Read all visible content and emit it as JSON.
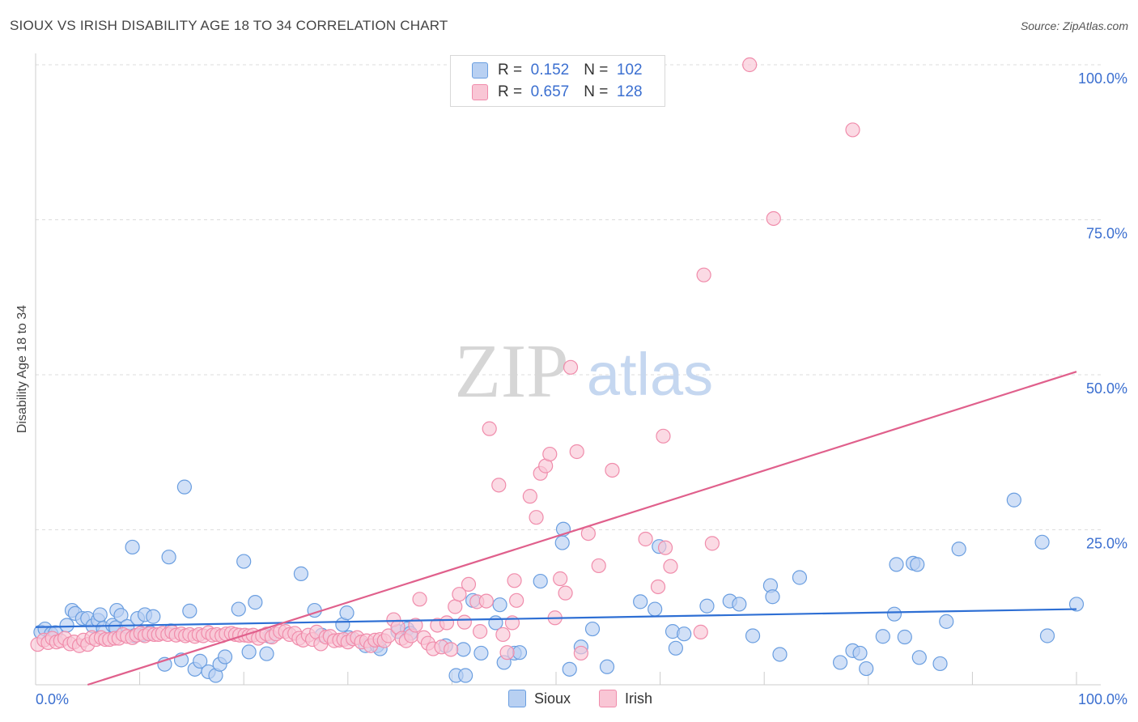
{
  "header": {
    "title": "SIOUX VS IRISH DISABILITY AGE 18 TO 34 CORRELATION CHART",
    "source": "Source: ZipAtlas.com"
  },
  "watermark": {
    "zip": "ZIP",
    "atlas": "atlas"
  },
  "legend": {
    "r_label": "R =",
    "n_label": "N =",
    "items": [
      {
        "name": "Sioux",
        "r": "0.152",
        "n": "102",
        "color": "#6a9ee0"
      },
      {
        "name": "Irish",
        "r": "0.657",
        "n": "128",
        "color": "#f08cab"
      }
    ]
  },
  "colors": {
    "sioux_fill": "#b8d0f2",
    "sioux_stroke": "#6a9ee0",
    "sioux_line": "#2e6fd4",
    "irish_fill": "#f9c6d5",
    "irish_stroke": "#f08cab",
    "irish_line": "#e0608c",
    "axis_text": "#3b6fd0",
    "grid": "#dddddd"
  },
  "chart_data": {
    "type": "scatter",
    "title": "SIOUX VS IRISH DISABILITY AGE 18 TO 34 CORRELATION CHART",
    "xlabel": "",
    "ylabel": "Disability Age 18 to 34",
    "x_tick_labels": [
      "0.0%",
      "100.0%"
    ],
    "y_tick_labels": [
      "25.0%",
      "50.0%",
      "75.0%",
      "100.0%"
    ],
    "y_ticks": [
      25,
      50,
      75,
      100
    ],
    "xlim": [
      0,
      100
    ],
    "ylim": [
      0,
      100
    ],
    "grid": true,
    "legend_position": "top-center",
    "series": [
      {
        "name": "Sioux",
        "trend": {
          "x": [
            0,
            100
          ],
          "y": [
            9.3,
            12.2
          ]
        },
        "points": [
          [
            0.5,
            8.5
          ],
          [
            0.9,
            9
          ],
          [
            1.5,
            8.2
          ],
          [
            1.9,
            8.4
          ],
          [
            3.0,
            9.6
          ],
          [
            3.5,
            12
          ],
          [
            3.8,
            11.5
          ],
          [
            4.5,
            10.7
          ],
          [
            5,
            10.7
          ],
          [
            5.5,
            9.5
          ],
          [
            6,
            10.4
          ],
          [
            6.2,
            11.3
          ],
          [
            6.5,
            9.1
          ],
          [
            7.4,
            9.6
          ],
          [
            7.7,
            9.2
          ],
          [
            7.8,
            12
          ],
          [
            8.2,
            11.2
          ],
          [
            8.8,
            9.4
          ],
          [
            9.3,
            22.2
          ],
          [
            9.5,
            7.9
          ],
          [
            9.8,
            10.7
          ],
          [
            10.3,
            8.1
          ],
          [
            10.5,
            11.3
          ],
          [
            11,
            8.4
          ],
          [
            11.3,
            11
          ],
          [
            12.4,
            3.3
          ],
          [
            12.8,
            20.6
          ],
          [
            13,
            8.7
          ],
          [
            14,
            4
          ],
          [
            14.3,
            31.9
          ],
          [
            14.8,
            11.9
          ],
          [
            15.3,
            2.5
          ],
          [
            15.8,
            3.8
          ],
          [
            16.6,
            2.1
          ],
          [
            17.3,
            1.5
          ],
          [
            17.7,
            3.3
          ],
          [
            18.2,
            4.5
          ],
          [
            19.5,
            12.2
          ],
          [
            20,
            19.9
          ],
          [
            20.5,
            5.3
          ],
          [
            21.1,
            13.3
          ],
          [
            22.2,
            5
          ],
          [
            22.5,
            7.8
          ],
          [
            25.5,
            17.9
          ],
          [
            26.8,
            12
          ],
          [
            27.5,
            8
          ],
          [
            29.5,
            9.7
          ],
          [
            29.9,
            11.6
          ],
          [
            30.1,
            7.6
          ],
          [
            31.7,
            6.3
          ],
          [
            32.8,
            6.3
          ],
          [
            33.1,
            5.8
          ],
          [
            34.8,
            8.6
          ],
          [
            35.7,
            9
          ],
          [
            36,
            8.3
          ],
          [
            39.4,
            6.3
          ],
          [
            40.4,
            1.5
          ],
          [
            41.1,
            5.7
          ],
          [
            41.3,
            1.5
          ],
          [
            42,
            13.6
          ],
          [
            42.8,
            5.1
          ],
          [
            44.2,
            10
          ],
          [
            44.6,
            12.9
          ],
          [
            45,
            3.6
          ],
          [
            46,
            5.1
          ],
          [
            46.5,
            5.2
          ],
          [
            48.5,
            16.7
          ],
          [
            50.6,
            22.9
          ],
          [
            50.7,
            25.1
          ],
          [
            51.3,
            2.5
          ],
          [
            52.4,
            6.1
          ],
          [
            53.5,
            9
          ],
          [
            54.9,
            2.9
          ],
          [
            58.1,
            13.4
          ],
          [
            59.5,
            12.2
          ],
          [
            59.9,
            22.3
          ],
          [
            61.2,
            8.6
          ],
          [
            61.5,
            5.9
          ],
          [
            62.3,
            8.2
          ],
          [
            64.5,
            12.7
          ],
          [
            66.7,
            13.5
          ],
          [
            67.6,
            13
          ],
          [
            68.9,
            7.9
          ],
          [
            70.6,
            16
          ],
          [
            70.8,
            14.2
          ],
          [
            71.5,
            4.9
          ],
          [
            73.4,
            17.3
          ],
          [
            77.3,
            3.6
          ],
          [
            78.5,
            5.5
          ],
          [
            79.2,
            5.1
          ],
          [
            79.8,
            2.6
          ],
          [
            81.4,
            7.8
          ],
          [
            82.5,
            11.4
          ],
          [
            82.7,
            19.4
          ],
          [
            83.5,
            7.7
          ],
          [
            84.3,
            19.6
          ],
          [
            84.7,
            19.4
          ],
          [
            84.9,
            4.4
          ],
          [
            86.9,
            3.4
          ],
          [
            87.5,
            10.2
          ],
          [
            88.7,
            21.9
          ],
          [
            94,
            29.8
          ],
          [
            96.7,
            23
          ],
          [
            97.2,
            7.9
          ],
          [
            100,
            13
          ]
        ]
      },
      {
        "name": "Irish",
        "trend": {
          "x": [
            5,
            100
          ],
          "y": [
            0,
            50.5
          ]
        },
        "points": [
          [
            0.2,
            6.5
          ],
          [
            0.8,
            7.2
          ],
          [
            1.2,
            6.8
          ],
          [
            1.6,
            7.5
          ],
          [
            2.0,
            6.9
          ],
          [
            2.4,
            7.1
          ],
          [
            2.8,
            7.5
          ],
          [
            3.3,
            6.6
          ],
          [
            3.7,
            6.9
          ],
          [
            4.2,
            6.3
          ],
          [
            4.6,
            7.2
          ],
          [
            5.0,
            6.5
          ],
          [
            5.4,
            7.6
          ],
          [
            5.8,
            7.3
          ],
          [
            6.3,
            7.6
          ],
          [
            6.7,
            7.3
          ],
          [
            7.1,
            7.3
          ],
          [
            7.6,
            7.5
          ],
          [
            8.0,
            7.5
          ],
          [
            8.4,
            8.1
          ],
          [
            8.8,
            7.8
          ],
          [
            9.3,
            7.6
          ],
          [
            9.7,
            8
          ],
          [
            10.1,
            8.3
          ],
          [
            10.5,
            7.9
          ],
          [
            10.9,
            8.2
          ],
          [
            11.4,
            8.1
          ],
          [
            11.8,
            8.1
          ],
          [
            12.2,
            8.3
          ],
          [
            12.7,
            8.1
          ],
          [
            13.1,
            8.5
          ],
          [
            13.5,
            8
          ],
          [
            14.0,
            8.2
          ],
          [
            14.4,
            7.9
          ],
          [
            14.8,
            8.1
          ],
          [
            15.3,
            7.8
          ],
          [
            15.7,
            8.1
          ],
          [
            16.1,
            7.9
          ],
          [
            16.6,
            8.4
          ],
          [
            17.0,
            8
          ],
          [
            17.4,
            8.1
          ],
          [
            17.9,
            7.9
          ],
          [
            18.3,
            8.2
          ],
          [
            18.8,
            8.3
          ],
          [
            19.2,
            8.1
          ],
          [
            19.6,
            8
          ],
          [
            20.1,
            8
          ],
          [
            20.5,
            7.9
          ],
          [
            20.9,
            8
          ],
          [
            21.4,
            7.5
          ],
          [
            21.8,
            7.9
          ],
          [
            22.2,
            8.2
          ],
          [
            22.7,
            7.7
          ],
          [
            23.1,
            8.2
          ],
          [
            23.5,
            8.6
          ],
          [
            24.0,
            8.6
          ],
          [
            24.4,
            8.1
          ],
          [
            24.9,
            8.3
          ],
          [
            25.3,
            7.5
          ],
          [
            25.7,
            7.2
          ],
          [
            26.2,
            8
          ],
          [
            26.6,
            7.3
          ],
          [
            27.0,
            8.5
          ],
          [
            27.4,
            6.6
          ],
          [
            27.9,
            7.7
          ],
          [
            28.3,
            7.8
          ],
          [
            28.7,
            7.1
          ],
          [
            29.2,
            7.2
          ],
          [
            29.6,
            7.3
          ],
          [
            30.0,
            6.9
          ],
          [
            30.5,
            7.4
          ],
          [
            30.9,
            7.6
          ],
          [
            31.3,
            6.9
          ],
          [
            31.8,
            7.1
          ],
          [
            32.2,
            6.3
          ],
          [
            32.6,
            7.2
          ],
          [
            33.1,
            7.3
          ],
          [
            33.5,
            7.1
          ],
          [
            33.9,
            7.9
          ],
          [
            34.4,
            10.5
          ],
          [
            34.8,
            9.3
          ],
          [
            35.2,
            7.5
          ],
          [
            35.6,
            7.1
          ],
          [
            36.1,
            7.9
          ],
          [
            36.5,
            9.6
          ],
          [
            36.9,
            13.8
          ],
          [
            37.3,
            7.6
          ],
          [
            37.7,
            6.7
          ],
          [
            38.2,
            5.8
          ],
          [
            38.6,
            9.6
          ],
          [
            39.0,
            6.1
          ],
          [
            39.5,
            10
          ],
          [
            39.9,
            5.7
          ],
          [
            40.3,
            12.6
          ],
          [
            40.7,
            14.6
          ],
          [
            41.2,
            10.1
          ],
          [
            41.6,
            16.2
          ],
          [
            42.4,
            13.4
          ],
          [
            42.7,
            8.6
          ],
          [
            43.3,
            13.5
          ],
          [
            43.6,
            41.3
          ],
          [
            44.5,
            32.2
          ],
          [
            44.9,
            8.1
          ],
          [
            45.3,
            5.2
          ],
          [
            45.8,
            10
          ],
          [
            46.0,
            16.8
          ],
          [
            46.2,
            13.6
          ],
          [
            47.5,
            30.4
          ],
          [
            48.1,
            27
          ],
          [
            48.5,
            34.1
          ],
          [
            49.0,
            35.3
          ],
          [
            49.4,
            37.2
          ],
          [
            49.9,
            10.8
          ],
          [
            50.4,
            17.1
          ],
          [
            50.9,
            14.8
          ],
          [
            51.4,
            51.2
          ],
          [
            52.0,
            37.6
          ],
          [
            52.4,
            5.1
          ],
          [
            53.1,
            24.4
          ],
          [
            54.1,
            19.2
          ],
          [
            55.4,
            34.6
          ],
          [
            58.6,
            23.5
          ],
          [
            59.8,
            15.8
          ],
          [
            60.3,
            40.1
          ],
          [
            60.5,
            22.1
          ],
          [
            61.0,
            19.1
          ],
          [
            63.9,
            8.5
          ],
          [
            64.2,
            66.1
          ],
          [
            65.0,
            22.8
          ],
          [
            68.6,
            100
          ],
          [
            70.9,
            75.2
          ],
          [
            78.5,
            89.5
          ]
        ]
      }
    ]
  }
}
